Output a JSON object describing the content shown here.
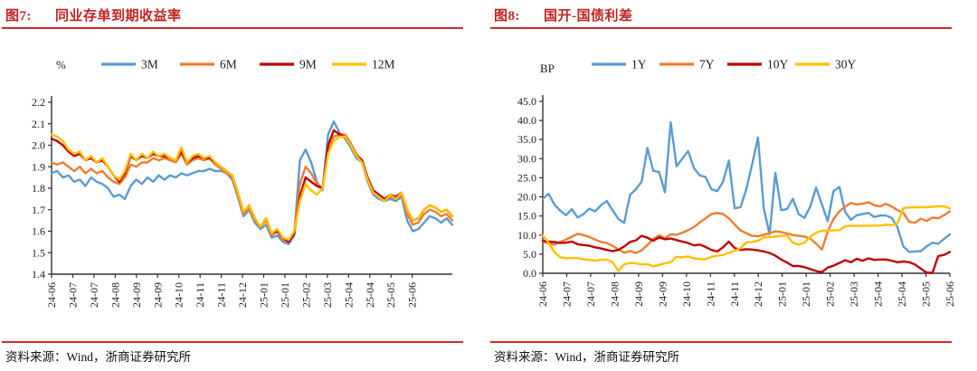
{
  "page": {
    "background": "#FFFFFF",
    "accent_red": "#C32222",
    "text_color": "#1A1A1A"
  },
  "panels": [
    {
      "fig_label": "图7:",
      "title": "同业存单到期收益率",
      "source_note": "资料来源：Wind，浙商证券研究所"
    },
    {
      "fig_label": "图8:",
      "title": "国开-国债利差",
      "source_note": "资料来源：Wind，浙商证券研究所"
    }
  ],
  "chart_data": [
    {
      "type": "line",
      "title": "同业存单到期收益率",
      "unit": "%",
      "ylim": [
        1.4,
        2.2
      ],
      "y_step": 0.1,
      "y_decimals": 1,
      "grid": false,
      "legend_position": "top",
      "tick_end_frac": 0.9,
      "x_tick_labels": [
        "24-06",
        "24-07",
        "24-07",
        "24-08",
        "24-09",
        "24-09",
        "24-10",
        "24-11",
        "24-11",
        "24-12",
        "25-01",
        "25-01",
        "25-02",
        "25-03",
        "25-04",
        "25-04",
        "25-05",
        "25-06"
      ],
      "series": [
        {
          "name": "3M",
          "color": "#5B9BD5",
          "values": [
            1.87,
            1.88,
            1.85,
            1.86,
            1.83,
            1.84,
            1.81,
            1.85,
            1.83,
            1.82,
            1.8,
            1.76,
            1.77,
            1.75,
            1.81,
            1.84,
            1.82,
            1.85,
            1.83,
            1.86,
            1.84,
            1.86,
            1.85,
            1.87,
            1.86,
            1.87,
            1.88,
            1.88,
            1.89,
            1.88,
            1.88,
            1.87,
            1.84,
            1.76,
            1.67,
            1.7,
            1.64,
            1.61,
            1.63,
            1.57,
            1.58,
            1.55,
            1.54,
            1.58,
            1.93,
            1.98,
            1.92,
            1.83,
            1.79,
            2.05,
            2.11,
            2.06,
            2.03,
            1.99,
            1.94,
            1.92,
            1.83,
            1.77,
            1.75,
            1.74,
            1.75,
            1.74,
            1.76,
            1.65,
            1.6,
            1.61,
            1.64,
            1.67,
            1.66,
            1.64,
            1.66,
            1.63
          ]
        },
        {
          "name": "6M",
          "color": "#ED7D31",
          "values": [
            1.92,
            1.91,
            1.92,
            1.9,
            1.88,
            1.9,
            1.87,
            1.89,
            1.87,
            1.88,
            1.85,
            1.83,
            1.82,
            1.85,
            1.91,
            1.9,
            1.92,
            1.92,
            1.94,
            1.93,
            1.94,
            1.93,
            1.92,
            1.96,
            1.91,
            1.93,
            1.94,
            1.93,
            1.94,
            1.91,
            1.89,
            1.87,
            1.85,
            1.77,
            1.68,
            1.71,
            1.65,
            1.62,
            1.65,
            1.58,
            1.6,
            1.56,
            1.55,
            1.6,
            1.82,
            1.9,
            1.87,
            1.82,
            1.8,
            1.98,
            2.04,
            2.05,
            2.05,
            2.01,
            1.96,
            1.93,
            1.84,
            1.78,
            1.76,
            1.75,
            1.76,
            1.75,
            1.77,
            1.68,
            1.63,
            1.64,
            1.68,
            1.7,
            1.69,
            1.67,
            1.68,
            1.65
          ]
        },
        {
          "name": "9M",
          "color": "#C00000",
          "values": [
            2.03,
            2.02,
            2.0,
            1.97,
            1.95,
            1.96,
            1.93,
            1.94,
            1.92,
            1.93,
            1.9,
            1.86,
            1.83,
            1.87,
            1.95,
            1.93,
            1.95,
            1.94,
            1.96,
            1.95,
            1.95,
            1.94,
            1.93,
            1.97,
            1.92,
            1.94,
            1.95,
            1.94,
            1.94,
            1.92,
            1.9,
            1.88,
            1.86,
            1.78,
            1.69,
            1.72,
            1.66,
            1.62,
            1.66,
            1.59,
            1.6,
            1.57,
            1.55,
            1.59,
            1.76,
            1.85,
            1.83,
            1.81,
            1.8,
            2.0,
            2.07,
            2.05,
            2.04,
            2.0,
            1.95,
            1.93,
            1.85,
            1.79,
            1.77,
            1.75,
            1.77,
            1.76,
            1.78,
            1.7,
            1.65,
            1.66,
            1.7,
            1.72,
            1.71,
            1.69,
            1.7,
            1.67
          ]
        },
        {
          "name": "12M",
          "color": "#FFC000",
          "values": [
            2.05,
            2.04,
            2.02,
            1.98,
            1.96,
            1.97,
            1.93,
            1.95,
            1.92,
            1.94,
            1.9,
            1.86,
            1.84,
            1.88,
            1.96,
            1.93,
            1.96,
            1.94,
            1.97,
            1.95,
            1.96,
            1.94,
            1.93,
            1.99,
            1.92,
            1.95,
            1.96,
            1.94,
            1.95,
            1.92,
            1.9,
            1.88,
            1.86,
            1.78,
            1.69,
            1.72,
            1.66,
            1.62,
            1.66,
            1.59,
            1.61,
            1.57,
            1.56,
            1.6,
            1.74,
            1.82,
            1.79,
            1.77,
            1.8,
            1.96,
            2.02,
            2.04,
            2.04,
            2.0,
            1.95,
            1.92,
            1.84,
            1.78,
            1.76,
            1.74,
            1.77,
            1.75,
            1.78,
            1.7,
            1.65,
            1.66,
            1.7,
            1.72,
            1.71,
            1.69,
            1.7,
            1.67
          ]
        }
      ]
    },
    {
      "type": "line",
      "title": "国开-国债利差",
      "unit": "BP",
      "ylim": [
        0,
        45
      ],
      "y_step": 5,
      "y_decimals": 1,
      "grid": false,
      "legend_position": "top",
      "tick_end_frac": 1.0,
      "x_tick_labels": [
        "24-06",
        "24-07",
        "24-07",
        "24-08",
        "24-09",
        "24-09",
        "24-10",
        "24-11",
        "24-11",
        "24-12",
        "25-01",
        "25-01",
        "25-02",
        "25-03",
        "25-04",
        "25-04",
        "25-05",
        "25-06"
      ],
      "series": [
        {
          "name": "1Y",
          "color": "#5B9BD5",
          "values": [
            19.5,
            20.8,
            18.0,
            16.4,
            15.2,
            16.8,
            14.6,
            15.5,
            16.9,
            16.2,
            17.8,
            18.9,
            16.5,
            14.2,
            13.2,
            20.5,
            22.0,
            24.0,
            32.8,
            26.8,
            26.5,
            21.2,
            39.5,
            28.0,
            30.0,
            32.0,
            27.5,
            25.6,
            25.2,
            22.0,
            21.5,
            24.0,
            29.5,
            17.0,
            17.3,
            22.0,
            28.5,
            35.5,
            17.0,
            10.2,
            26.3,
            16.5,
            16.8,
            19.5,
            15.5,
            14.5,
            17.5,
            22.4,
            18.0,
            13.6,
            21.5,
            22.6,
            16.0,
            14.0,
            15.2,
            15.5,
            15.8,
            14.7,
            15.1,
            15.1,
            14.5,
            12.0,
            7.0,
            5.6,
            5.7,
            5.8,
            7.0,
            8.0,
            7.7,
            9.0,
            10.2
          ]
        },
        {
          "name": "7Y",
          "color": "#ED7D31",
          "values": [
            8.3,
            7.8,
            7.5,
            8.2,
            8.8,
            9.6,
            10.3,
            10.0,
            9.5,
            8.8,
            8.2,
            7.9,
            7.2,
            6.2,
            5.4,
            5.8,
            5.3,
            6.0,
            7.4,
            9.0,
            9.9,
            9.2,
            10.2,
            10.1,
            10.6,
            11.3,
            12.1,
            13.3,
            14.4,
            15.5,
            15.8,
            15.5,
            14.4,
            12.8,
            11.2,
            10.5,
            9.8,
            9.7,
            10.1,
            10.5,
            11.0,
            10.8,
            10.4,
            10.0,
            9.8,
            9.6,
            9.1,
            7.8,
            6.2,
            11.0,
            14.2,
            16.2,
            17.5,
            18.4,
            18.0,
            18.2,
            18.6,
            17.8,
            17.5,
            18.2,
            17.5,
            16.5,
            15.8,
            13.5,
            13.2,
            14.3,
            13.7,
            14.6,
            14.4,
            15.2,
            16.2
          ]
        },
        {
          "name": "10Y",
          "color": "#C00000",
          "values": [
            8.5,
            8.3,
            8.2,
            7.9,
            8.0,
            8.3,
            7.6,
            7.4,
            7.2,
            6.8,
            6.5,
            6.1,
            5.8,
            6.1,
            7.0,
            8.2,
            8.6,
            9.8,
            9.3,
            8.5,
            9.4,
            8.9,
            9.1,
            8.7,
            8.3,
            7.9,
            7.3,
            7.5,
            6.9,
            6.1,
            5.7,
            6.8,
            8.3,
            6.6,
            6.1,
            6.3,
            6.2,
            6.0,
            5.7,
            5.3,
            4.6,
            3.6,
            2.8,
            1.9,
            1.9,
            1.6,
            1.1,
            0.6,
            0.3,
            1.5,
            2.0,
            2.7,
            3.4,
            2.9,
            3.8,
            3.3,
            3.9,
            3.5,
            3.6,
            3.6,
            3.3,
            2.9,
            3.1,
            2.9,
            2.3,
            1.2,
            0.2,
            0.1,
            4.5,
            4.8,
            5.6
          ]
        },
        {
          "name": "30Y",
          "color": "#FFC000",
          "values": [
            9.9,
            8.0,
            5.5,
            4.2,
            3.9,
            4.0,
            3.9,
            3.7,
            3.5,
            3.3,
            3.5,
            3.6,
            2.9,
            0.6,
            2.4,
            2.7,
            2.6,
            2.3,
            2.4,
            1.8,
            2.2,
            2.6,
            2.9,
            4.3,
            4.2,
            4.4,
            3.9,
            3.7,
            3.7,
            4.3,
            4.6,
            4.8,
            5.3,
            5.9,
            6.6,
            8.1,
            8.2,
            8.5,
            9.4,
            9.5,
            9.6,
            9.8,
            9.9,
            8.0,
            7.5,
            8.0,
            9.6,
            10.6,
            11.1,
            11.2,
            11.2,
            11.3,
            12.3,
            12.4,
            12.4,
            12.4,
            12.4,
            12.5,
            12.5,
            12.7,
            12.6,
            13.0,
            17.1,
            17.2,
            17.3,
            17.3,
            17.3,
            17.4,
            17.5,
            17.5,
            17.0
          ]
        }
      ]
    }
  ]
}
